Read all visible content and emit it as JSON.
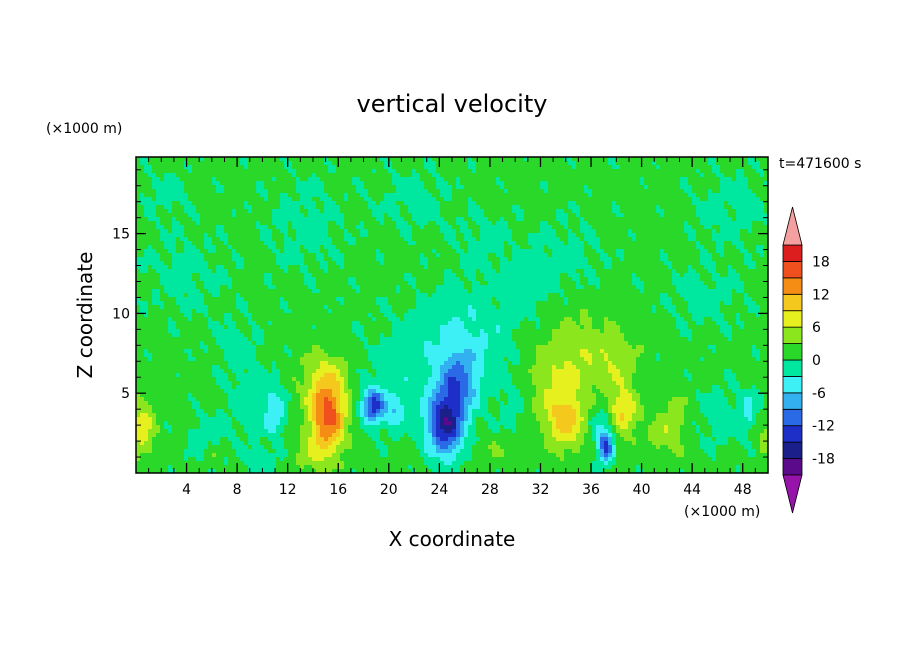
{
  "chart_data": {
    "type": "heatmap",
    "title": "vertical velocity",
    "time_label": "t=471600 s",
    "xlabel": "X coordinate",
    "ylabel": "Z coordinate",
    "x_unit": "(×1000 m)",
    "y_unit": "(×1000 m)",
    "xlim": [
      0,
      50
    ],
    "ylim": [
      0,
      19.8
    ],
    "x_ticks": [
      4,
      8,
      12,
      16,
      20,
      24,
      28,
      32,
      36,
      40,
      44,
      48
    ],
    "y_ticks": [
      5,
      10,
      15
    ],
    "colorbar": {
      "levels": [
        -21,
        -18,
        -15,
        -12,
        -9,
        -6,
        -3,
        0,
        3,
        6,
        9,
        12,
        15,
        18,
        21
      ],
      "tick_values": [
        -18,
        -12,
        -6,
        0,
        6,
        12,
        18
      ],
      "colors": [
        "#5a0a8a",
        "#1a1f8a",
        "#1e2fc8",
        "#2a6ae6",
        "#33b0f0",
        "#3cf0f5",
        "#00e8a0",
        "#2ad82a",
        "#8ce61e",
        "#e6f01e",
        "#f5c81e",
        "#f58c14",
        "#f0501e",
        "#dc1e1e"
      ],
      "over_color": "#f5a0a0",
      "under_color": "#9614aa"
    },
    "blobs": [
      {
        "x": 15.2,
        "z": 3.5,
        "sx": 1.4,
        "sz": 2.0,
        "v": 14
      },
      {
        "x": 15.0,
        "z": 5.8,
        "sx": 1.8,
        "sz": 2.0,
        "v": 6
      },
      {
        "x": 14.2,
        "z": 1.2,
        "sx": 1.6,
        "sz": 1.3,
        "v": 4
      },
      {
        "x": 18.8,
        "z": 4.2,
        "sx": 0.9,
        "sz": 1.1,
        "v": -14
      },
      {
        "x": 20.5,
        "z": 3.8,
        "sx": 0.7,
        "sz": 1.0,
        "v": -6
      },
      {
        "x": 24.5,
        "z": 3.0,
        "sx": 1.4,
        "sz": 2.0,
        "v": -16
      },
      {
        "x": 25.5,
        "z": 5.5,
        "sx": 1.5,
        "sz": 2.0,
        "v": -9
      },
      {
        "x": 26.5,
        "z": 8.5,
        "sx": 3.5,
        "sz": 3.0,
        "v": -4
      },
      {
        "x": 22.0,
        "z": 6.5,
        "sx": 4.0,
        "sz": 3.5,
        "v": -2.5
      },
      {
        "x": 11.0,
        "z": 3.8,
        "sx": 0.8,
        "sz": 1.5,
        "v": -6
      },
      {
        "x": 9.0,
        "z": 4.5,
        "sx": 2.0,
        "sz": 2.5,
        "v": -2.5
      },
      {
        "x": 34.0,
        "z": 3.2,
        "sx": 1.6,
        "sz": 1.8,
        "v": 8
      },
      {
        "x": 33.0,
        "z": 5.5,
        "sx": 2.5,
        "sz": 2.5,
        "v": 4
      },
      {
        "x": 35.0,
        "z": 7.8,
        "sx": 2.5,
        "sz": 2.8,
        "v": 3.2
      },
      {
        "x": 38.5,
        "z": 3.8,
        "sx": 1.2,
        "sz": 1.5,
        "v": 8
      },
      {
        "x": 38.0,
        "z": 7.0,
        "sx": 1.8,
        "sz": 2.0,
        "v": 4
      },
      {
        "x": 37.2,
        "z": 1.6,
        "sx": 0.6,
        "sz": 1.0,
        "v": -12
      },
      {
        "x": 36.8,
        "z": 3.0,
        "sx": 1.0,
        "sz": 1.5,
        "v": -5
      },
      {
        "x": 42.0,
        "z": 2.5,
        "sx": 1.5,
        "sz": 1.6,
        "v": 4
      },
      {
        "x": 43.0,
        "z": 4.0,
        "sx": 1.0,
        "sz": 1.2,
        "v": 2.5
      },
      {
        "x": 46.5,
        "z": 3.5,
        "sx": 2.5,
        "sz": 2.0,
        "v": -2.5
      },
      {
        "x": 48.5,
        "z": 4.0,
        "sx": 0.5,
        "sz": 1.0,
        "v": -5
      },
      {
        "x": 0.5,
        "z": 2.8,
        "sx": 1.0,
        "sz": 1.8,
        "v": 7
      },
      {
        "x": 5.5,
        "z": 2.0,
        "sx": 1.5,
        "sz": 1.5,
        "v": -3
      },
      {
        "x": 6.0,
        "z": 1.2,
        "sx": 0.6,
        "sz": 0.8,
        "v": 3
      },
      {
        "x": 10.0,
        "z": 0.8,
        "sx": 1.5,
        "sz": 0.8,
        "v": -2.5
      },
      {
        "x": 49.7,
        "z": 2.0,
        "sx": 0.5,
        "sz": 1.0,
        "v": 4
      },
      {
        "x": 29.0,
        "z": 1.5,
        "sx": 2.0,
        "sz": 1.0,
        "v": 2
      },
      {
        "x": 30.0,
        "z": 4.0,
        "sx": 1.5,
        "sz": 2.5,
        "v": -2
      },
      {
        "x": 4.0,
        "z": 12.5,
        "sx": 3.5,
        "sz": 2.5,
        "v": -2
      },
      {
        "x": 13.5,
        "z": 15.5,
        "sx": 3.0,
        "sz": 3.0,
        "v": -2
      },
      {
        "x": 22.0,
        "z": 17.0,
        "sx": 3.0,
        "sz": 2.0,
        "v": -2
      },
      {
        "x": 34.0,
        "z": 13.5,
        "sx": 3.0,
        "sz": 2.5,
        "v": -2
      },
      {
        "x": 31.0,
        "z": 11.5,
        "sx": 2.0,
        "sz": 2.0,
        "v": -2
      },
      {
        "x": 45.0,
        "z": 11.0,
        "sx": 3.0,
        "sz": 2.0,
        "v": -2
      },
      {
        "x": 47.0,
        "z": 16.5,
        "sx": 3.0,
        "sz": 2.5,
        "v": -2
      },
      {
        "x": 8.0,
        "z": 8.0,
        "sx": 2.0,
        "sz": 1.5,
        "v": -2
      },
      {
        "x": 2.5,
        "z": 17.5,
        "sx": 2.0,
        "sz": 1.5,
        "v": -2
      },
      {
        "x": 27.5,
        "z": 14.5,
        "sx": 2.0,
        "sz": 2.0,
        "v": -2
      }
    ]
  }
}
